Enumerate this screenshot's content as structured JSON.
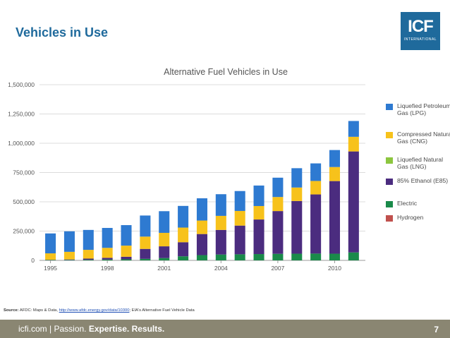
{
  "slide": {
    "title": "Vehicles in Use",
    "logo_main": "ICF",
    "logo_sub": "INTERNATIONAL",
    "source_label": "Source:",
    "source_text": "AFDC: Maps & Data,",
    "source_link": "http://www.afdc.energy.gov/data/10300",
    "source_suffix": "; EIA's Alternative Fuel Vehicle Data",
    "footer_site": "icfi.com",
    "footer_sep": "|",
    "footer_passion": "Passion.",
    "footer_expertise": "Expertise.",
    "footer_results": "Results.",
    "page_number": "7"
  },
  "colors": {
    "brand": "#1f6a9c",
    "footer": "#8a8672"
  },
  "chart_data": {
    "type": "bar",
    "stacked": true,
    "title": "Alternative Fuel Vehicles in Use",
    "xlabel": "",
    "ylabel": "",
    "ylim": [
      0,
      1500000
    ],
    "yticks": [
      0,
      250000,
      500000,
      750000,
      1000000,
      1250000,
      1500000
    ],
    "ytick_labels": [
      "0",
      "250,000",
      "500,000",
      "750,000",
      "1,000,000",
      "1,250,000",
      "1,500,000"
    ],
    "xtick_labels": [
      {
        "index": 0,
        "label": "1995"
      },
      {
        "index": 3,
        "label": "1998"
      },
      {
        "index": 6,
        "label": "2001"
      },
      {
        "index": 9,
        "label": "2004"
      },
      {
        "index": 12,
        "label": "2007"
      },
      {
        "index": 15,
        "label": "2010"
      }
    ],
    "categories": [
      "1995",
      "1996",
      "1997",
      "1998",
      "1999",
      "2000",
      "2001",
      "2002",
      "2003",
      "2004",
      "2005",
      "2006",
      "2007",
      "2008",
      "2009",
      "2010",
      "2011"
    ],
    "series": [
      {
        "name": "Hydrogen",
        "legend": "Hydrogen",
        "color": "#c0504d",
        "values": [
          0,
          0,
          0,
          0,
          0,
          0,
          0,
          0,
          0,
          0,
          0,
          0,
          0,
          0,
          0,
          0,
          0
        ]
      },
      {
        "name": "Electric",
        "legend": "Electric",
        "color": "#1a8a4a",
        "values": [
          3000,
          4000,
          5000,
          7000,
          9000,
          13000,
          20000,
          35000,
          45000,
          50000,
          52000,
          54000,
          56000,
          57000,
          58000,
          57000,
          68000
        ]
      },
      {
        "name": "85% Ethanol (E85)",
        "legend": "85% Ethanol (E85)",
        "color": "#4b2c7f",
        "values": [
          2000,
          4000,
          10000,
          15000,
          22000,
          85000,
          100000,
          120000,
          180000,
          210000,
          245000,
          295000,
          365000,
          450000,
          505000,
          620000,
          862000
        ]
      },
      {
        "name": "Liquefied Natural Gas (LNG)",
        "legend": "Liquefied Natural Gas (LNG)",
        "color": "#8cc63f",
        "values": [
          0,
          0,
          0,
          0,
          0,
          0,
          0,
          0,
          0,
          0,
          0,
          0,
          0,
          0,
          0,
          0,
          0
        ]
      },
      {
        "name": "Compressed Natural Gas (CNG)",
        "legend": "Compressed Natural Gas (CNG)",
        "color": "#f7c21b",
        "values": [
          55000,
          65000,
          75000,
          85000,
          95000,
          105000,
          115000,
          125000,
          115000,
          120000,
          125000,
          115000,
          120000,
          115000,
          115000,
          120000,
          125000
        ]
      },
      {
        "name": "Liquefied Petroleum Gas (LPG)",
        "legend": "Liquefied Petroleum Gas (LPG)",
        "color": "#2e7ad1",
        "values": [
          170000,
          175000,
          170000,
          170000,
          175000,
          180000,
          185000,
          185000,
          190000,
          185000,
          170000,
          175000,
          165000,
          165000,
          150000,
          145000,
          135000
        ]
      }
    ],
    "legend_order": [
      "Liquefied Petroleum Gas (LPG)",
      "Compressed Natural Gas (CNG)",
      "Liquefied Natural Gas (LNG)",
      "85% Ethanol (E85)",
      "Electric",
      "Hydrogen"
    ],
    "legend_position": "right",
    "grid": true
  }
}
